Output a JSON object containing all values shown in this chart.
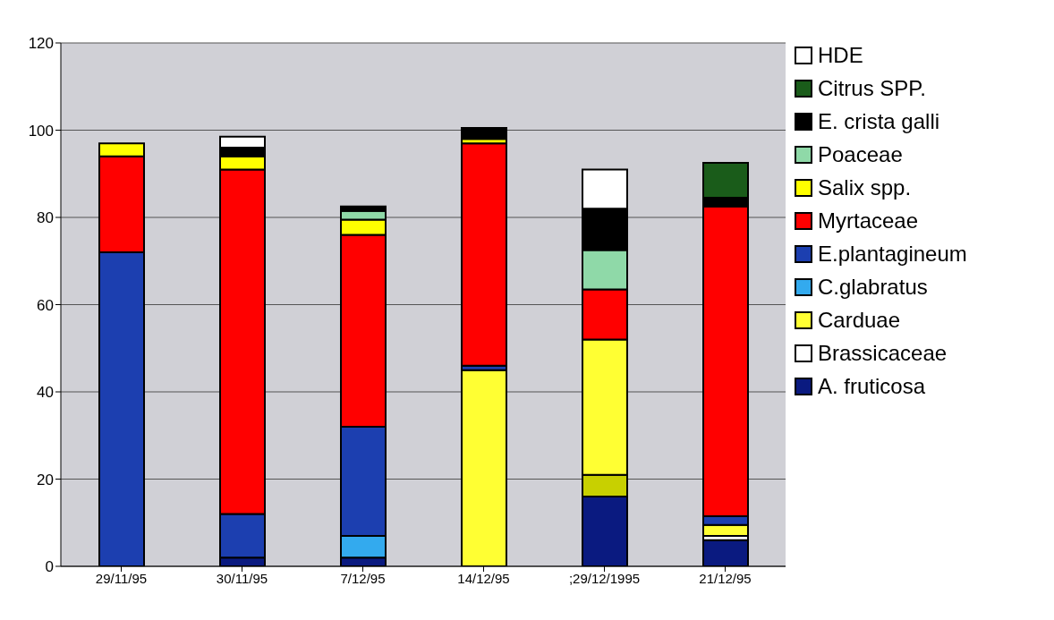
{
  "chart_data": {
    "type": "bar",
    "stacked": true,
    "categories": [
      "29/11/95",
      "30/11/95",
      "7/12/95",
      "14/12/95",
      ";29/12/1995",
      "21/12/95"
    ],
    "series": [
      {
        "name": "A.  fruticosa",
        "color": "#0a1a80",
        "values": [
          null,
          2,
          2,
          null,
          16,
          6
        ]
      },
      {
        "name": "Brassicaceae",
        "color": "#ffffff",
        "colors": [
          "#ffffff",
          "#ffffff",
          "#ffffff",
          "#ffffff",
          "#c8d000",
          "#ffffff"
        ],
        "values": [
          null,
          null,
          null,
          null,
          5,
          1
        ]
      },
      {
        "name": "Carduae",
        "color": "#ffff33",
        "values": [
          null,
          null,
          null,
          45,
          31,
          2.5
        ]
      },
      {
        "name": "C.glabratus",
        "color": "#33aaee",
        "values": [
          null,
          null,
          5,
          null,
          null,
          null
        ]
      },
      {
        "name": "E.plantagineum",
        "color": "#1c3fb0",
        "values": [
          72,
          10,
          25,
          1,
          null,
          2
        ]
      },
      {
        "name": "Myrtaceae",
        "color": "#ff0000",
        "values": [
          22,
          79,
          44,
          51,
          11.5,
          71
        ]
      },
      {
        "name": "Salix spp.",
        "color": "#ffff00",
        "values": [
          3,
          3,
          3.5,
          1,
          null,
          null
        ]
      },
      {
        "name": "Poaceae",
        "color": "#8fd9a8",
        "values": [
          null,
          null,
          2,
          null,
          9,
          null
        ]
      },
      {
        "name": "E. crista galli",
        "color": "#000000",
        "values": [
          null,
          2,
          1,
          2.5,
          9.5,
          2
        ]
      },
      {
        "name": "Citrus SPP.",
        "color": "#1a5c1a",
        "values": [
          null,
          null,
          null,
          null,
          null,
          8
        ]
      },
      {
        "name": "HDE",
        "color": "#ffffff",
        "values": [
          null,
          2.5,
          null,
          null,
          9,
          null
        ]
      }
    ],
    "ylim": [
      0,
      120
    ],
    "yticks": [
      0,
      20,
      40,
      60,
      80,
      100,
      120
    ],
    "grid": "y",
    "legend": "right"
  }
}
